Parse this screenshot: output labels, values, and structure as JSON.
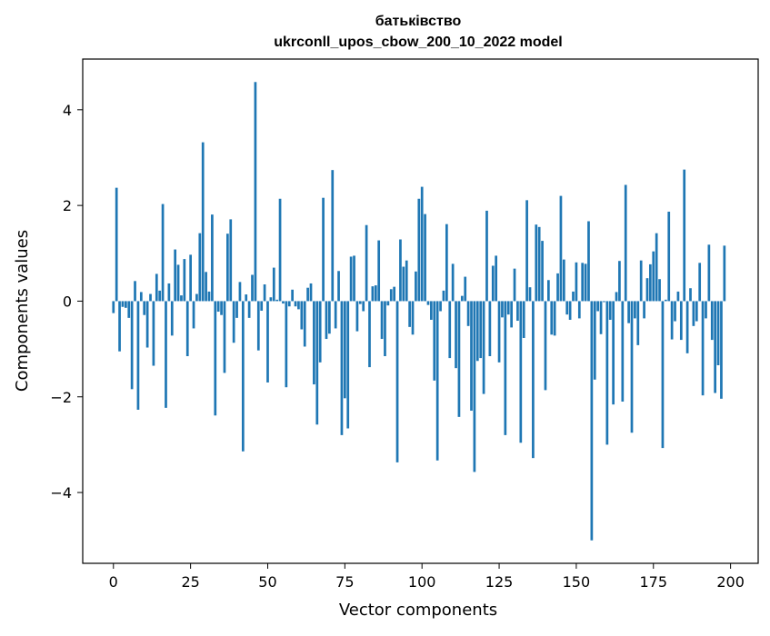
{
  "chart_data": {
    "type": "bar",
    "title": "батьківство",
    "subtitle": "ukrconll_upos_cbow_200_10_2022 model",
    "xlabel": "Vector components",
    "ylabel": "Components values",
    "xlim": [
      -9.95,
      208.95
    ],
    "ylim": [
      -5.48,
      5.06
    ],
    "xticks": [
      0,
      25,
      50,
      75,
      100,
      125,
      150,
      175,
      200
    ],
    "yticks": [
      -4,
      -2,
      0,
      2,
      4
    ],
    "ytick_labels": [
      "−4",
      "−2",
      "0",
      "2",
      "4"
    ],
    "grid": false,
    "bar_color": "#1f77b4",
    "values": [
      -0.25,
      2.37,
      -1.05,
      -0.12,
      -0.14,
      -0.35,
      -1.84,
      0.42,
      -2.27,
      0.19,
      -0.29,
      -0.97,
      0.15,
      -1.35,
      0.57,
      0.22,
      2.03,
      -2.23,
      0.37,
      -0.72,
      1.08,
      0.76,
      0.12,
      0.88,
      -1.15,
      0.97,
      -0.57,
      0.15,
      1.42,
      3.32,
      0.61,
      0.2,
      1.81,
      -2.39,
      -0.22,
      -0.29,
      -1.5,
      1.41,
      1.71,
      -0.87,
      -0.35,
      0.4,
      -3.14,
      0.14,
      -0.35,
      0.55,
      4.58,
      -1.03,
      -0.2,
      0.35,
      -1.7,
      0.08,
      0.7,
      0.03,
      2.14,
      -0.05,
      -1.8,
      -0.11,
      0.24,
      -0.11,
      -0.17,
      -0.59,
      -0.95,
      0.28,
      0.37,
      -1.74,
      -2.58,
      -1.28,
      2.16,
      -0.79,
      -0.68,
      2.74,
      -0.57,
      0.63,
      -2.8,
      -2.03,
      -2.66,
      0.93,
      0.95,
      -0.63,
      -0.06,
      -0.21,
      1.59,
      -1.38,
      0.31,
      0.33,
      1.27,
      -0.79,
      -1.15,
      -0.09,
      0.25,
      0.3,
      -3.37,
      1.29,
      0.72,
      0.85,
      -0.54,
      -0.7,
      0.62,
      2.14,
      2.39,
      1.82,
      -0.08,
      -0.39,
      -1.66,
      -3.33,
      -0.21,
      0.22,
      1.61,
      -1.19,
      0.78,
      -1.4,
      -2.42,
      0.11,
      0.51,
      -0.52,
      -2.29,
      -3.57,
      -1.25,
      -1.19,
      -1.94,
      1.89,
      -1.15,
      0.74,
      0.95,
      -1.28,
      -0.34,
      -2.8,
      -0.28,
      -0.55,
      0.68,
      -0.41,
      -2.96,
      -0.77,
      2.11,
      0.29,
      -3.28,
      1.6,
      1.55,
      1.26,
      -1.86,
      0.44,
      -0.7,
      -0.72,
      0.58,
      2.2,
      0.87,
      -0.28,
      -0.39,
      0.2,
      0.81,
      -0.36,
      0.8,
      0.78,
      1.67,
      -5,
      -1.64,
      -0.21,
      -0.69,
      -0.02,
      -3,
      -0.39,
      -2.16,
      0.19,
      0.84,
      -2.1,
      2.43,
      -0.46,
      -2.75,
      -0.36,
      -0.92,
      0.85,
      -0.36,
      0.48,
      0.77,
      1.04,
      1.42,
      0.46,
      -3.07,
      0.03,
      1.87,
      -0.8,
      -0.42,
      0.2,
      -0.81,
      2.75,
      -1.09,
      0.27,
      -0.52,
      -0.42,
      0.8,
      -1.97,
      -0.36,
      1.18,
      -0.81,
      -1.92,
      -1.34,
      -2.04,
      1.16
    ]
  }
}
